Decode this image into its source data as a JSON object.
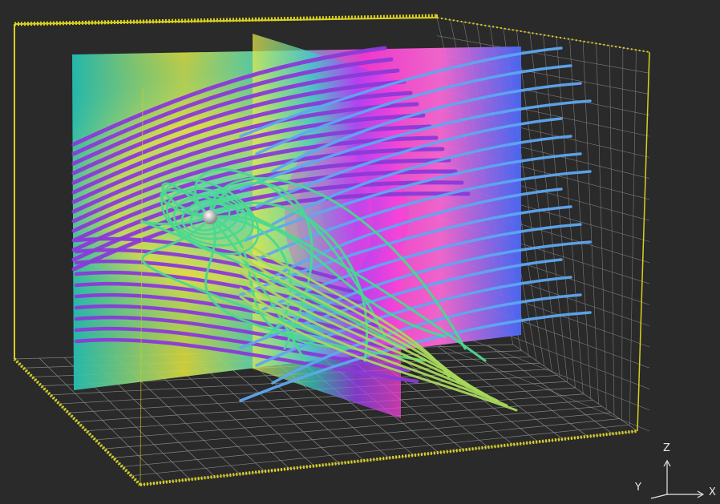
{
  "viewport": {
    "background": "#2a2a2a",
    "box_color": "#d8d020",
    "grid_color": "#bdbdbd",
    "floor_grid_color": "#9a9a9a"
  },
  "slices": {
    "back_slice_colors": [
      "#22c6b8",
      "#d8d83a",
      "#3ad3c8",
      "#ff3ad8",
      "#4a6bff"
    ],
    "middle_slice_colors": [
      "#e8e84a",
      "#3ad3c8",
      "#b040ff",
      "#ff40d8"
    ]
  },
  "streamlines": {
    "colors": [
      "#8a3ad8",
      "#5fa6f0",
      "#4ad890",
      "#a6d85a"
    ]
  },
  "planet": {
    "color": "#dcdcdc"
  },
  "orientation_axes": {
    "z_label": "Z",
    "y_label": "Y",
    "x_label": "X"
  }
}
